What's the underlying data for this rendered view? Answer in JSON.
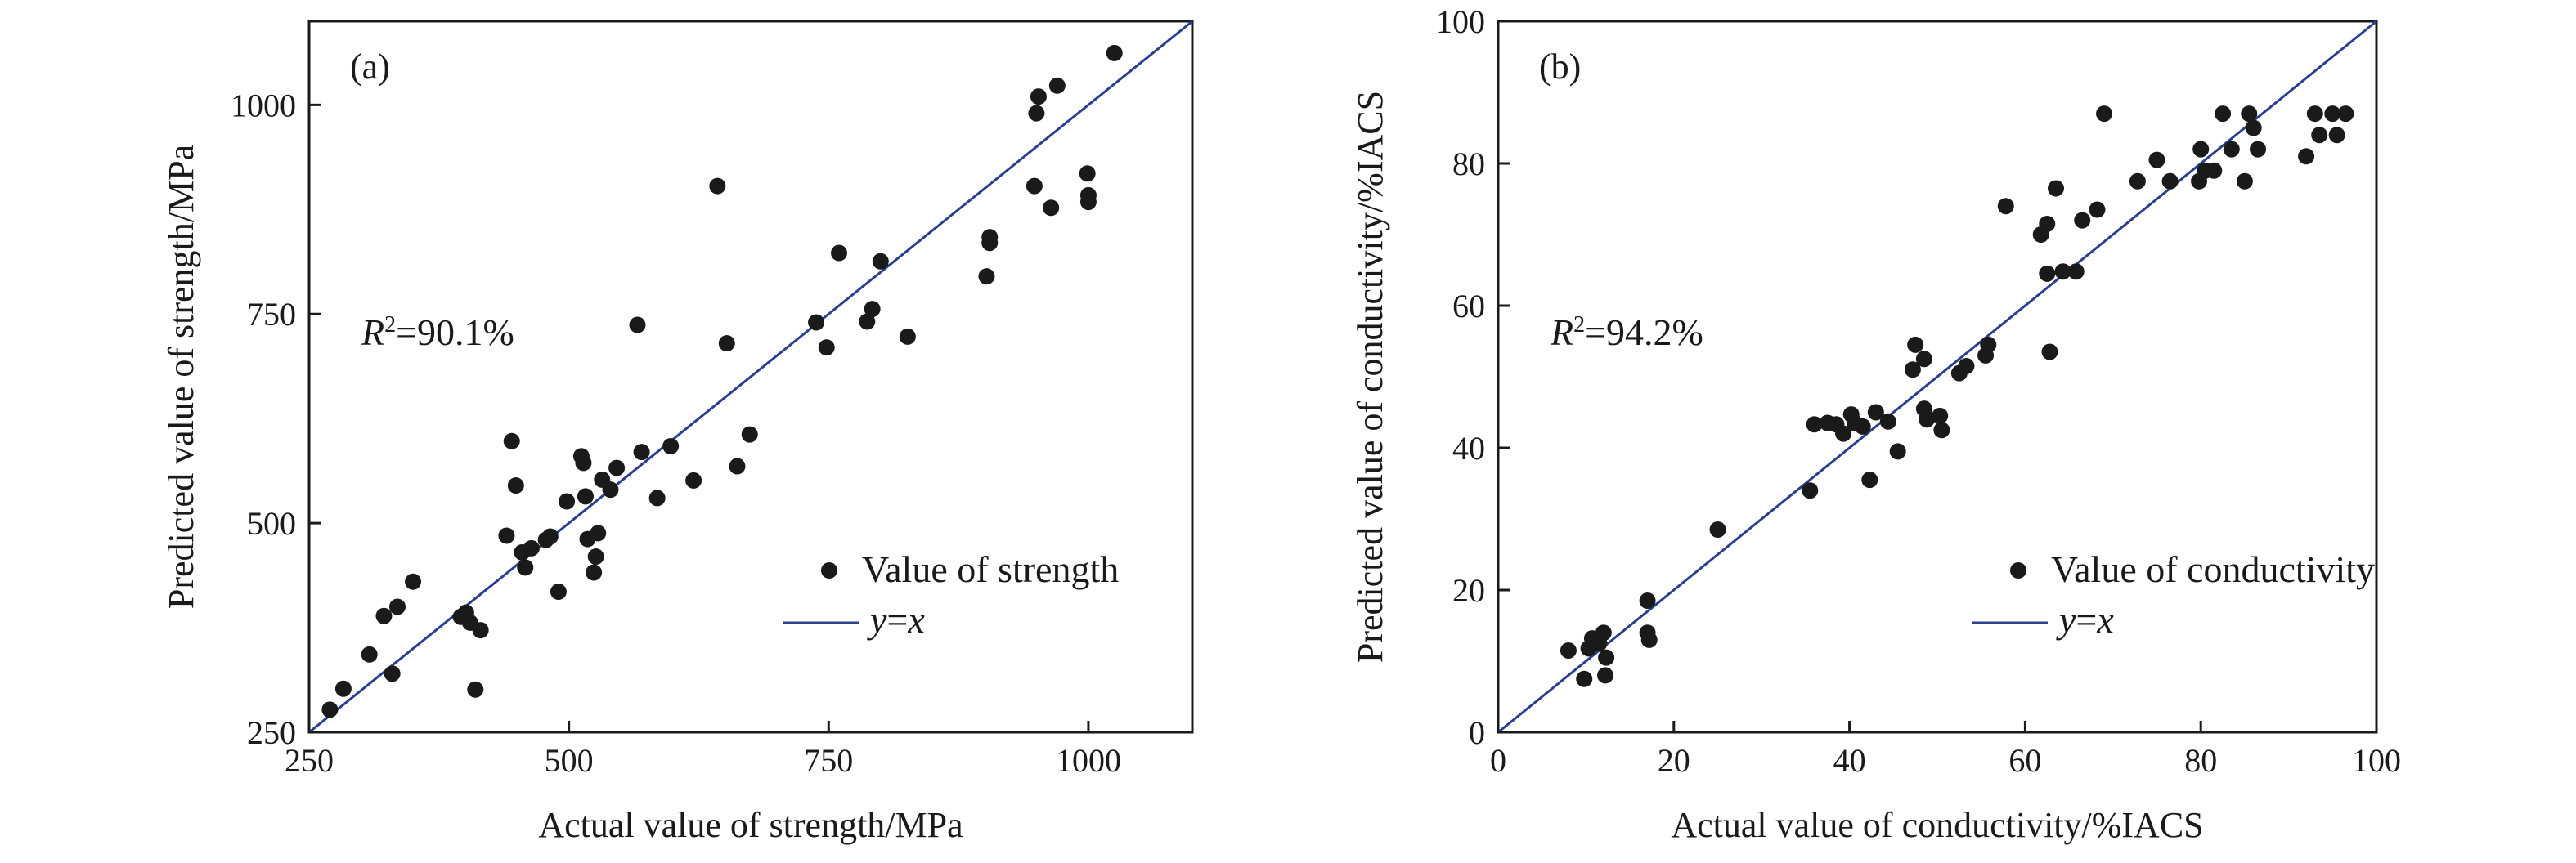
{
  "colors": {
    "points": "#1a1a1a",
    "fit_line": "#2b3f8f",
    "axes": "#1a1a1a"
  },
  "chart_data": [
    {
      "type": "scatter",
      "panel_label": "(a)",
      "xlabel": "Actual value of strength/MPa",
      "ylabel": "Predicted value of strength/MPa",
      "xlim": [
        250,
        1100
      ],
      "ylim": [
        250,
        1100
      ],
      "xticks": [
        250,
        500,
        750,
        1000
      ],
      "yticks": [
        250,
        500,
        750,
        1000
      ],
      "grid": false,
      "legend_position": "bottom-right",
      "annotation": {
        "r_symbol": "R",
        "sup": "2",
        "rest": "=90.1%"
      },
      "legend": {
        "points": "Value of strength",
        "line_y": "y",
        "line_eq": "=",
        "line_x": "x"
      },
      "series": [
        {
          "name": "Value of strength",
          "points": [
            [
              270,
              277
            ],
            [
              283,
              302
            ],
            [
              308,
              343
            ],
            [
              322,
              389
            ],
            [
              330,
              320
            ],
            [
              335,
              400
            ],
            [
              350,
              430
            ],
            [
              396,
              388
            ],
            [
              401,
              393
            ],
            [
              405,
              381
            ],
            [
              410,
              301
            ],
            [
              415,
              372
            ],
            [
              440,
              485
            ],
            [
              445,
              598
            ],
            [
              449,
              545
            ],
            [
              455,
              465
            ],
            [
              458,
              447
            ],
            [
              464,
              470
            ],
            [
              478,
              480
            ],
            [
              482,
              484
            ],
            [
              490,
              418
            ],
            [
              498,
              526
            ],
            [
              512,
              580
            ],
            [
              514,
              572
            ],
            [
              516,
              532
            ],
            [
              518,
              481
            ],
            [
              524,
              441
            ],
            [
              526,
              460
            ],
            [
              528,
              488
            ],
            [
              532,
              552
            ],
            [
              540,
              540
            ],
            [
              546,
              566
            ],
            [
              566,
              737
            ],
            [
              570,
              585
            ],
            [
              585,
              530
            ],
            [
              598,
              592
            ],
            [
              620,
              551
            ],
            [
              643,
              903
            ],
            [
              652,
              715
            ],
            [
              662,
              568
            ],
            [
              674,
              606
            ],
            [
              738,
              740
            ],
            [
              748,
              710
            ],
            [
              760,
              823
            ],
            [
              787,
              741
            ],
            [
              792,
              756
            ],
            [
              800,
              813
            ],
            [
              826,
              723
            ],
            [
              902,
              795
            ],
            [
              905,
              835
            ],
            [
              905,
              842
            ],
            [
              948,
              903
            ],
            [
              950,
              990
            ],
            [
              952,
              1010
            ],
            [
              964,
              877
            ],
            [
              970,
              1023
            ],
            [
              999,
              918
            ],
            [
              1000,
              892
            ],
            [
              1000,
              884
            ],
            [
              1025,
              1062
            ]
          ]
        }
      ]
    },
    {
      "type": "scatter",
      "panel_label": "(b)",
      "xlabel": "Actual value of conductivity/%IACS",
      "ylabel": "Predicted value of conductivity/%IACS",
      "xlim": [
        0,
        100
      ],
      "ylim": [
        0,
        100
      ],
      "xticks": [
        0,
        20,
        40,
        60,
        80,
        100
      ],
      "yticks": [
        0,
        20,
        40,
        60,
        80,
        100
      ],
      "grid": false,
      "legend_position": "bottom-right",
      "annotation": {
        "r_symbol": "R",
        "sup": "2",
        "rest": "=94.2%"
      },
      "legend": {
        "points": "Value of conductivity",
        "line_y": "y",
        "line_eq": "=",
        "line_x": "x"
      },
      "series": [
        {
          "name": "Value of conductivity",
          "points": [
            [
              8,
              11.5
            ],
            [
              9.8,
              7.5
            ],
            [
              10.3,
              11.8
            ],
            [
              10.7,
              13.2
            ],
            [
              11.5,
              12.5
            ],
            [
              12,
              14
            ],
            [
              12.2,
              8
            ],
            [
              12.3,
              10.5
            ],
            [
              17,
              18.5
            ],
            [
              17,
              14
            ],
            [
              17.2,
              13
            ],
            [
              25,
              28.5
            ],
            [
              35.5,
              34
            ],
            [
              36,
              43.3
            ],
            [
              37.5,
              43.5
            ],
            [
              38.5,
              43.3
            ],
            [
              39.3,
              42
            ],
            [
              40.2,
              44.7
            ],
            [
              40.6,
              43.5
            ],
            [
              41.5,
              43
            ],
            [
              42.3,
              35.5
            ],
            [
              43,
              45
            ],
            [
              44.4,
              43.7
            ],
            [
              45.5,
              39.5
            ],
            [
              47.2,
              51
            ],
            [
              47.5,
              54.5
            ],
            [
              48.5,
              52.5
            ],
            [
              48.5,
              45.5
            ],
            [
              48.8,
              44
            ],
            [
              50.3,
              44.5
            ],
            [
              50.5,
              42.5
            ],
            [
              52.5,
              50.5
            ],
            [
              53.3,
              51.5
            ],
            [
              55.5,
              53
            ],
            [
              55.8,
              54.5
            ],
            [
              57.8,
              74
            ],
            [
              61.8,
              70
            ],
            [
              62.5,
              71.5
            ],
            [
              62.5,
              64.5
            ],
            [
              62.8,
              53.5
            ],
            [
              63.5,
              76.5
            ],
            [
              64.3,
              64.8
            ],
            [
              65.8,
              64.8
            ],
            [
              66.5,
              72
            ],
            [
              68.2,
              73.5
            ],
            [
              69,
              87
            ],
            [
              72.8,
              77.5
            ],
            [
              75,
              80.5
            ],
            [
              76.5,
              77.5
            ],
            [
              79.8,
              77.5
            ],
            [
              80,
              82
            ],
            [
              80.5,
              79
            ],
            [
              81.5,
              79
            ],
            [
              82.5,
              87
            ],
            [
              83.5,
              82
            ],
            [
              85,
              77.5
            ],
            [
              85.5,
              87
            ],
            [
              86,
              85
            ],
            [
              86.5,
              82
            ],
            [
              92,
              81
            ],
            [
              93,
              87
            ],
            [
              93.5,
              84
            ],
            [
              95,
              87
            ],
            [
              95.5,
              84
            ],
            [
              96.5,
              87
            ]
          ]
        }
      ]
    }
  ]
}
